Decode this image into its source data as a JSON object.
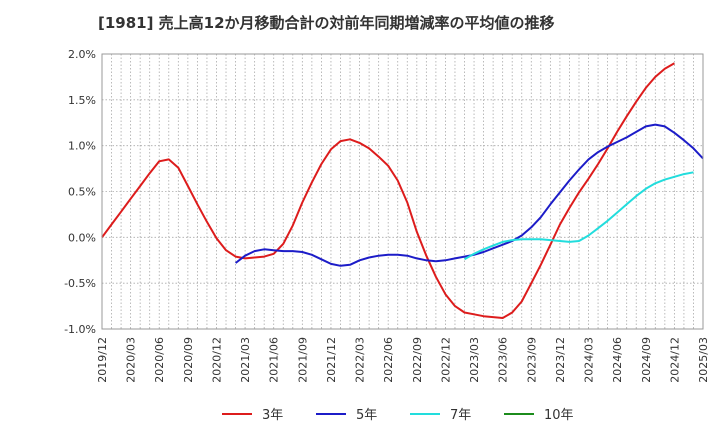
{
  "chart_data": {
    "type": "line",
    "title": "[1981]  売上高12か月移動合計の対前年同期増減率の平均値の推移",
    "xlabel": "",
    "ylabel": "",
    "ylim": [
      -1.0,
      2.0
    ],
    "y_ticks": [
      "2.0%",
      "1.5%",
      "1.0%",
      "0.5%",
      "0.0%",
      "-0.5%",
      "-1.0%"
    ],
    "x_ticks": [
      "2019/12",
      "2020/03",
      "2020/06",
      "2020/09",
      "2020/12",
      "2021/03",
      "2021/06",
      "2021/09",
      "2021/12",
      "2022/03",
      "2022/06",
      "2022/09",
      "2022/12",
      "2023/03",
      "2023/06",
      "2023/09",
      "2023/12",
      "2024/03",
      "2024/06",
      "2024/09",
      "2024/12",
      "2025/03"
    ],
    "grid": true,
    "legend_position": "bottom",
    "series": [
      {
        "name": "3年",
        "color": "#dd1c1c",
        "start_index": 0,
        "values": [
          0.0,
          0.14,
          0.28,
          0.42,
          0.56,
          0.7,
          0.83,
          0.85,
          0.76,
          0.56,
          0.36,
          0.17,
          -0.01,
          -0.14,
          -0.21,
          -0.23,
          -0.22,
          -0.21,
          -0.18,
          -0.07,
          0.13,
          0.38,
          0.6,
          0.8,
          0.96,
          1.05,
          1.07,
          1.03,
          0.97,
          0.88,
          0.78,
          0.62,
          0.38,
          0.06,
          -0.2,
          -0.43,
          -0.62,
          -0.75,
          -0.82,
          -0.84,
          -0.86,
          -0.87,
          -0.88,
          -0.82,
          -0.7,
          -0.5,
          -0.3,
          -0.08,
          0.14,
          0.32,
          0.49,
          0.64,
          0.8,
          0.97,
          1.15,
          1.32,
          1.48,
          1.63,
          1.75,
          1.84,
          1.9
        ]
      },
      {
        "name": "5年",
        "color": "#1c1cc8",
        "start_index": 14,
        "values": [
          -0.28,
          -0.2,
          -0.15,
          -0.13,
          -0.14,
          -0.15,
          -0.15,
          -0.16,
          -0.19,
          -0.24,
          -0.29,
          -0.31,
          -0.3,
          -0.25,
          -0.22,
          -0.2,
          -0.19,
          -0.19,
          -0.2,
          -0.23,
          -0.25,
          -0.26,
          -0.25,
          -0.23,
          -0.21,
          -0.19,
          -0.16,
          -0.12,
          -0.08,
          -0.04,
          0.02,
          0.11,
          0.22,
          0.36,
          0.49,
          0.62,
          0.74,
          0.85,
          0.93,
          0.99,
          1.04,
          1.09,
          1.15,
          1.21,
          1.23,
          1.21,
          1.14,
          1.06,
          0.97,
          0.86
        ]
      },
      {
        "name": "7年",
        "color": "#22dddd",
        "start_index": 38,
        "values": [
          -0.24,
          -0.18,
          -0.13,
          -0.09,
          -0.05,
          -0.03,
          -0.02,
          -0.02,
          -0.02,
          -0.03,
          -0.04,
          -0.05,
          -0.04,
          0.02,
          0.1,
          0.18,
          0.27,
          0.36,
          0.45,
          0.53,
          0.59,
          0.63,
          0.66,
          0.69,
          0.71
        ]
      },
      {
        "name": "10年",
        "color": "#1c8c1c",
        "start_index": 0,
        "values": []
      }
    ]
  }
}
